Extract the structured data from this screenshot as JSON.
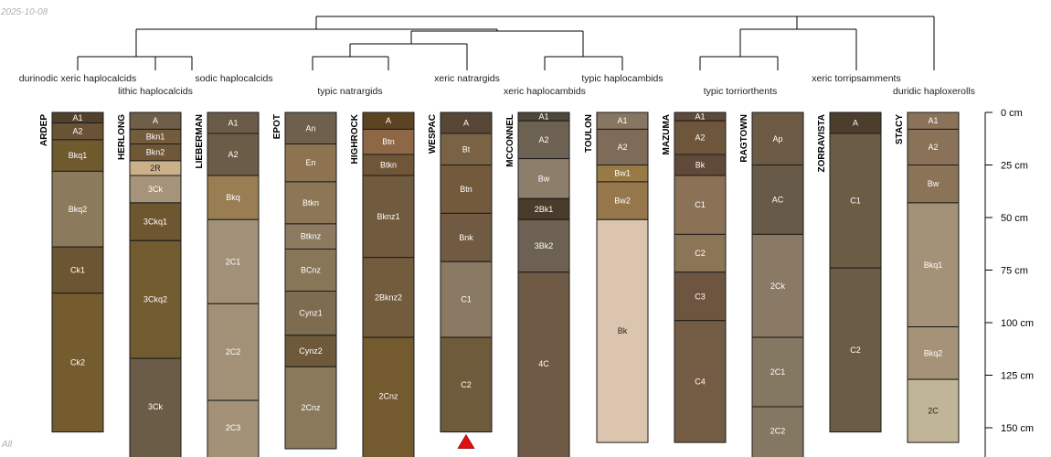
{
  "header": {
    "date": "2025-10-08"
  },
  "footer": {
    "note": "All"
  },
  "colors": {
    "background": "#ffffff",
    "line": "#000000",
    "marker": "#e01010"
  },
  "chart_data": {
    "type": "soil-profile-sketch-with-dendrogram",
    "depth_unit": "cm",
    "depth_axis": {
      "ticks": [
        0,
        25,
        50,
        75,
        100,
        125,
        150
      ],
      "tick_labels": [
        "0 cm",
        "25 cm",
        "50 cm",
        "75 cm",
        "100 cm",
        "125 cm",
        "150 cm"
      ]
    },
    "taxa": [
      "durinodic xeric haplocalcids",
      "lithic haplocalcids",
      "sodic haplocalcids",
      "typic natrargids",
      "xeric natrargids",
      "xeric haplocambids",
      "typic haplocambids",
      "typic torriorthents",
      "xeric torripsamments",
      "duridic haploxerolls"
    ],
    "profiles": [
      {
        "name": "ARDEP",
        "horizons": [
          {
            "name": "A1",
            "top": 0,
            "bottom": 5,
            "color": "#52412a"
          },
          {
            "name": "A2",
            "top": 5,
            "bottom": 13,
            "color": "#6a5237"
          },
          {
            "name": "Bkq1",
            "top": 13,
            "bottom": 28,
            "color": "#6f5a2e"
          },
          {
            "name": "Bkq2",
            "top": 28,
            "bottom": 64,
            "color": "#8c7a5c"
          },
          {
            "name": "Ck1",
            "top": 64,
            "bottom": 86,
            "color": "#6b5532"
          },
          {
            "name": "Ck2",
            "top": 86,
            "bottom": 152,
            "color": "#745c2e"
          }
        ]
      },
      {
        "name": "HERLONG",
        "horizons": [
          {
            "name": "A",
            "top": 0,
            "bottom": 8,
            "color": "#6f5f4a"
          },
          {
            "name": "Bkn1",
            "top": 8,
            "bottom": 15,
            "color": "#735b3e"
          },
          {
            "name": "Bkn2",
            "top": 15,
            "bottom": 23,
            "color": "#6e5637"
          },
          {
            "name": "2R",
            "top": 23,
            "bottom": 30,
            "color": "#ccb089"
          },
          {
            "name": "3Ck",
            "top": 30,
            "bottom": 43,
            "color": "#a59479"
          },
          {
            "name": "3Ckq1",
            "top": 43,
            "bottom": 61,
            "color": "#6e5630"
          },
          {
            "name": "3Ckq2",
            "top": 61,
            "bottom": 117,
            "color": "#735b30"
          },
          {
            "name": "3Ck",
            "top": 117,
            "bottom": 165,
            "color": "#6b5c48"
          }
        ]
      },
      {
        "name": "LIEBERMAN",
        "horizons": [
          {
            "name": "A1",
            "top": 0,
            "bottom": 10,
            "color": "#6a5a48"
          },
          {
            "name": "A2",
            "top": 10,
            "bottom": 30,
            "color": "#6b5c48"
          },
          {
            "name": "Bkq",
            "top": 30,
            "bottom": 51,
            "color": "#987e52"
          },
          {
            "name": "2C1",
            "top": 51,
            "bottom": 91,
            "color": "#a29178"
          },
          {
            "name": "2C2",
            "top": 91,
            "bottom": 137,
            "color": "#a39177"
          },
          {
            "name": "2C3",
            "top": 137,
            "bottom": 165,
            "color": "#a39177"
          }
        ]
      },
      {
        "name": "EPOT",
        "horizons": [
          {
            "name": "An",
            "top": 0,
            "bottom": 15,
            "color": "#6e604c"
          },
          {
            "name": "En",
            "top": 15,
            "bottom": 33,
            "color": "#8d7350"
          },
          {
            "name": "Btkn",
            "top": 33,
            "bottom": 53,
            "color": "#8d7656"
          },
          {
            "name": "Btknz",
            "top": 53,
            "bottom": 65,
            "color": "#8d7a61"
          },
          {
            "name": "BCnz",
            "top": 65,
            "bottom": 85,
            "color": "#887659"
          },
          {
            "name": "Cynz1",
            "top": 85,
            "bottom": 106,
            "color": "#7d6c4f"
          },
          {
            "name": "Cynz2",
            "top": 106,
            "bottom": 121,
            "color": "#6e5a3b"
          },
          {
            "name": "2Cnz",
            "top": 121,
            "bottom": 160,
            "color": "#8a7a5c"
          }
        ]
      },
      {
        "name": "HIGHROCK",
        "horizons": [
          {
            "name": "A",
            "top": 0,
            "bottom": 8,
            "color": "#5c4423"
          },
          {
            "name": "Btn",
            "top": 8,
            "bottom": 20,
            "color": "#8e6746"
          },
          {
            "name": "Btkn",
            "top": 20,
            "bottom": 30,
            "color": "#6f5639"
          },
          {
            "name": "Bknz1",
            "top": 30,
            "bottom": 69,
            "color": "#715b3f"
          },
          {
            "name": "2Bknz2",
            "top": 69,
            "bottom": 107,
            "color": "#735b3e"
          },
          {
            "name": "2Cnz",
            "top": 107,
            "bottom": 165,
            "color": "#745a2f"
          }
        ]
      },
      {
        "name": "WESPAC",
        "marker": "triangle",
        "horizons": [
          {
            "name": "A",
            "top": 0,
            "bottom": 10,
            "color": "#584736"
          },
          {
            "name": "Bt",
            "top": 10,
            "bottom": 25,
            "color": "#7a6245"
          },
          {
            "name": "Btn",
            "top": 25,
            "bottom": 48,
            "color": "#745a3d"
          },
          {
            "name": "Bnk",
            "top": 48,
            "bottom": 71,
            "color": "#705a42"
          },
          {
            "name": "C1",
            "top": 71,
            "bottom": 107,
            "color": "#897862"
          },
          {
            "name": "C2",
            "top": 107,
            "bottom": 152,
            "color": "#6d5b3c"
          }
        ]
      },
      {
        "name": "MCCONNEL",
        "horizons": [
          {
            "name": "A1",
            "top": 0,
            "bottom": 4,
            "color": "#4f463c"
          },
          {
            "name": "A2",
            "top": 4,
            "bottom": 22,
            "color": "#6d6252"
          },
          {
            "name": "Bw",
            "top": 22,
            "bottom": 41,
            "color": "#8c7e6a"
          },
          {
            "name": "2Bk1",
            "top": 41,
            "bottom": 51,
            "color": "#4a3b2b"
          },
          {
            "name": "3Bk2",
            "top": 51,
            "bottom": 76,
            "color": "#6c6152"
          },
          {
            "name": "4C",
            "top": 76,
            "bottom": 165,
            "color": "#6e5a45"
          }
        ]
      },
      {
        "name": "TOULON",
        "horizons": [
          {
            "name": "A1",
            "top": 0,
            "bottom": 8,
            "color": "#877661"
          },
          {
            "name": "A2",
            "top": 8,
            "bottom": 25,
            "color": "#7f6c58"
          },
          {
            "name": "Bw1",
            "top": 25,
            "bottom": 33,
            "color": "#987a47"
          },
          {
            "name": "Bw2",
            "top": 33,
            "bottom": 51,
            "color": "#96774c"
          },
          {
            "name": "Bk",
            "top": 51,
            "bottom": 157,
            "color": "#dcc5ae"
          }
        ]
      },
      {
        "name": "MAZUMA",
        "horizons": [
          {
            "name": "A1",
            "top": 0,
            "bottom": 4,
            "color": "#5e4a38"
          },
          {
            "name": "A2",
            "top": 4,
            "bottom": 20,
            "color": "#6e563c"
          },
          {
            "name": "Bk",
            "top": 20,
            "bottom": 30,
            "color": "#61493a"
          },
          {
            "name": "C1",
            "top": 30,
            "bottom": 58,
            "color": "#8b7257"
          },
          {
            "name": "C2",
            "top": 58,
            "bottom": 76,
            "color": "#8c7556"
          },
          {
            "name": "C3",
            "top": 76,
            "bottom": 99,
            "color": "#6e5540"
          },
          {
            "name": "C4",
            "top": 99,
            "bottom": 157,
            "color": "#735c43"
          }
        ]
      },
      {
        "name": "RAGTOWN",
        "horizons": [
          {
            "name": "Ap",
            "top": 0,
            "bottom": 25,
            "color": "#6d5a45"
          },
          {
            "name": "AC",
            "top": 25,
            "bottom": 58,
            "color": "#675a48"
          },
          {
            "name": "2Ck",
            "top": 58,
            "bottom": 107,
            "color": "#8a7964"
          },
          {
            "name": "2C1",
            "top": 107,
            "bottom": 140,
            "color": "#857862"
          },
          {
            "name": "2C2",
            "top": 140,
            "bottom": 165,
            "color": "#857862"
          }
        ]
      },
      {
        "name": "ZORRAVISTA",
        "horizons": [
          {
            "name": "A",
            "top": 0,
            "bottom": 10,
            "color": "#4b3e2d"
          },
          {
            "name": "C1",
            "top": 10,
            "bottom": 74,
            "color": "#6b5c46"
          },
          {
            "name": "C2",
            "top": 74,
            "bottom": 152,
            "color": "#6b5c46"
          }
        ]
      },
      {
        "name": "STACY",
        "horizons": [
          {
            "name": "A1",
            "top": 0,
            "bottom": 8,
            "color": "#8b735a"
          },
          {
            "name": "A2",
            "top": 8,
            "bottom": 25,
            "color": "#8a7258"
          },
          {
            "name": "Bw",
            "top": 25,
            "bottom": 43,
            "color": "#8b7358"
          },
          {
            "name": "Bkq1",
            "top": 43,
            "bottom": 102,
            "color": "#a39277"
          },
          {
            "name": "Bkq2",
            "top": 102,
            "bottom": 127,
            "color": "#a69276"
          },
          {
            "name": "2C",
            "top": 127,
            "bottom": 157,
            "color": "#c1b597"
          }
        ]
      }
    ]
  }
}
